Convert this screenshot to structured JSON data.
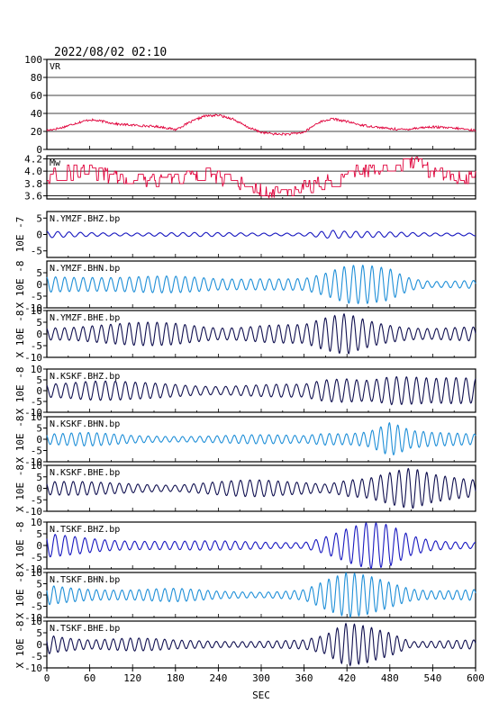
{
  "datetime_label": "2022/08/02 02:10",
  "x_axis": {
    "label": "SEC",
    "range": [
      0,
      600
    ],
    "ticks": [
      0,
      60,
      120,
      180,
      240,
      300,
      360,
      420,
      480,
      540,
      600
    ]
  },
  "colors": {
    "axis": "#000000",
    "grid": "#000000",
    "vr_line": "#e0003a",
    "mw_line": "#e0003a",
    "trace_dark": "#101050",
    "trace_blue": "#1818c0",
    "trace_light": "#1f8fd8"
  },
  "chart_data": [
    {
      "type": "line",
      "panel": "vr",
      "label": "VR",
      "ylim": [
        0,
        100
      ],
      "yticks": [
        0,
        20,
        40,
        60,
        80,
        100
      ],
      "grid": true,
      "x": [
        0,
        20,
        40,
        60,
        80,
        100,
        120,
        140,
        160,
        180,
        200,
        220,
        240,
        260,
        280,
        300,
        320,
        340,
        360,
        380,
        400,
        420,
        440,
        460,
        480,
        500,
        520,
        540,
        560,
        580,
        600
      ],
      "values": [
        21,
        24,
        29,
        33,
        31,
        28,
        27,
        26,
        25,
        22,
        30,
        37,
        38,
        34,
        25,
        19,
        17,
        17,
        19,
        30,
        34,
        31,
        27,
        25,
        23,
        22,
        24,
        25,
        24,
        23,
        21
      ]
    },
    {
      "type": "line",
      "panel": "mw",
      "label": "Mw",
      "ylim": [
        3.55,
        4.25
      ],
      "yticks": [
        3.6,
        3.8,
        4.0,
        4.2
      ],
      "yticklabels": [
        "3.6",
        "3.8",
        "4.0",
        "4.2"
      ],
      "grid": true,
      "x": [
        0,
        20,
        40,
        60,
        80,
        100,
        120,
        140,
        160,
        180,
        200,
        220,
        240,
        260,
        280,
        300,
        320,
        340,
        360,
        380,
        400,
        420,
        440,
        460,
        480,
        500,
        520,
        540,
        560,
        580,
        600
      ],
      "values": [
        3.9,
        3.95,
        4.0,
        4.0,
        3.95,
        3.9,
        3.9,
        3.85,
        3.85,
        3.9,
        3.95,
        3.95,
        3.9,
        3.85,
        3.8,
        3.7,
        3.65,
        3.7,
        3.75,
        3.8,
        3.85,
        3.95,
        4.0,
        4.0,
        4.05,
        4.1,
        4.15,
        4.0,
        3.95,
        3.9,
        3.9
      ]
    },
    {
      "type": "line",
      "panel": "trace",
      "label": "N.YMZF.BHZ.bp",
      "ylabel": "10E -7",
      "ylim": [
        -7,
        7
      ],
      "yticks": [
        -5,
        0,
        5
      ],
      "color_key": "trace_blue",
      "period_s": 16,
      "envelope_x": [
        0,
        60,
        120,
        180,
        240,
        300,
        360,
        400,
        420,
        480,
        540,
        600
      ],
      "envelope_amp": [
        1.0,
        0.8,
        0.7,
        0.6,
        0.6,
        0.6,
        0.7,
        1.5,
        1.0,
        0.8,
        0.7,
        0.6
      ]
    },
    {
      "type": "line",
      "panel": "trace",
      "label": "N.YMZF.BHN.bp",
      "ylabel": "X 10E -8",
      "ylim": [
        -10,
        10
      ],
      "yticks": [
        -10,
        -5,
        0,
        5
      ],
      "color_key": "trace_light",
      "period_s": 13,
      "envelope_x": [
        0,
        60,
        120,
        180,
        240,
        300,
        360,
        390,
        420,
        450,
        480,
        510,
        540,
        600
      ],
      "envelope_amp": [
        4,
        5,
        4,
        3.5,
        3,
        4,
        3,
        5,
        8,
        9,
        9,
        4,
        2,
        2
      ]
    },
    {
      "type": "line",
      "panel": "trace",
      "label": "N.YMZF.BHE.bp",
      "ylabel": "X 10E -8",
      "ylim": [
        -10,
        10
      ],
      "yticks": [
        -10,
        -5,
        0,
        5,
        10
      ],
      "color_key": "trace_dark",
      "period_s": 13,
      "envelope_x": [
        0,
        60,
        120,
        180,
        240,
        300,
        360,
        390,
        420,
        450,
        480,
        510,
        540,
        600
      ],
      "envelope_amp": [
        4,
        5,
        5,
        5,
        4,
        5,
        4,
        7,
        10,
        8,
        6,
        4,
        3,
        3
      ]
    },
    {
      "type": "line",
      "panel": "trace",
      "label": "N.KSKF.BHZ.bp",
      "ylabel": "X 10E -8",
      "ylim": [
        -10,
        10
      ],
      "yticks": [
        -10,
        -5,
        0,
        5,
        10
      ],
      "color_key": "trace_dark",
      "period_s": 14,
      "envelope_x": [
        0,
        60,
        120,
        180,
        240,
        300,
        360,
        390,
        420,
        450,
        480,
        510,
        540,
        600
      ],
      "envelope_amp": [
        5,
        5,
        4,
        4,
        3,
        3,
        3,
        6,
        8,
        8,
        10,
        8,
        6,
        6
      ]
    },
    {
      "type": "line",
      "panel": "trace",
      "label": "N.KSKF.BHN.bp",
      "ylabel": "X 10E -8",
      "ylim": [
        -10,
        10
      ],
      "yticks": [
        -10,
        -5,
        0,
        5,
        10
      ],
      "color_key": "trace_light",
      "period_s": 12,
      "envelope_x": [
        0,
        60,
        120,
        180,
        240,
        300,
        360,
        390,
        420,
        450,
        480,
        510,
        540,
        600
      ],
      "envelope_amp": [
        3,
        3,
        2,
        2,
        2,
        2,
        2,
        4,
        4,
        5,
        9,
        4,
        3,
        3
      ]
    },
    {
      "type": "line",
      "panel": "trace",
      "label": "N.KSKF.BHE.bp",
      "ylabel": "X 10E -8",
      "ylim": [
        -10,
        10
      ],
      "yticks": [
        -10,
        -5,
        0,
        5,
        10
      ],
      "color_key": "trace_dark",
      "period_s": 13,
      "envelope_x": [
        0,
        60,
        120,
        180,
        240,
        300,
        360,
        390,
        420,
        450,
        480,
        510,
        540,
        600
      ],
      "envelope_amp": [
        3,
        3,
        3,
        2,
        3,
        4,
        4,
        3,
        5,
        5,
        7,
        9,
        7,
        6
      ]
    },
    {
      "type": "line",
      "panel": "trace",
      "label": "N.TSKF.BHZ.bp",
      "ylabel": "X 10E -8",
      "ylim": [
        -10,
        10
      ],
      "yticks": [
        -10,
        -5,
        0,
        5,
        10
      ],
      "color_key": "trace_blue",
      "period_s": 14,
      "envelope_x": [
        0,
        60,
        120,
        180,
        240,
        300,
        360,
        390,
        420,
        450,
        480,
        510,
        540,
        600
      ],
      "envelope_amp": [
        5,
        4,
        3,
        2,
        2,
        2,
        2,
        5,
        8,
        10,
        9,
        5,
        3,
        2
      ]
    },
    {
      "type": "line",
      "panel": "trace",
      "label": "N.TSKF.BHN.bp",
      "ylabel": "X 10E -8",
      "ylim": [
        -10,
        10
      ],
      "yticks": [
        -10,
        -5,
        0,
        5,
        10
      ],
      "color_key": "trace_light",
      "period_s": 12,
      "envelope_x": [
        0,
        60,
        120,
        180,
        240,
        300,
        360,
        390,
        420,
        450,
        480,
        510,
        540,
        600
      ],
      "envelope_amp": [
        5,
        4,
        3,
        3,
        2,
        2,
        3,
        7,
        10,
        9,
        7,
        4,
        3,
        3
      ]
    },
    {
      "type": "line",
      "panel": "trace",
      "label": "N.TSKF.BHE.bp",
      "ylabel": "X 10E -8",
      "ylim": [
        -10,
        10
      ],
      "yticks": [
        -10,
        -5,
        0,
        5,
        10
      ],
      "color_key": "trace_dark",
      "period_s": 12,
      "envelope_x": [
        0,
        60,
        120,
        180,
        240,
        300,
        360,
        390,
        420,
        450,
        480,
        510,
        540,
        600
      ],
      "envelope_amp": [
        6,
        3,
        3,
        2,
        2,
        2,
        2,
        4,
        10,
        10,
        8,
        2,
        2,
        2
      ]
    }
  ]
}
